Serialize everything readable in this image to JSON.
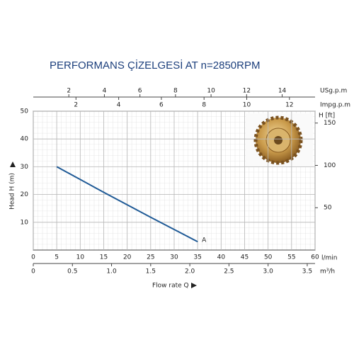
{
  "chart_data": {
    "type": "line",
    "title": "PERFORMANS ÇİZELGESİ  AT n=2850RPM",
    "x_label": "Flow rate Q",
    "x_unit": "l/min",
    "y_label": "Head H (m)",
    "y2_label": "H [ft]",
    "xlim": [
      0,
      60
    ],
    "xticks": [
      0,
      5,
      10,
      15,
      20,
      25,
      30,
      35,
      40,
      45,
      50,
      55,
      60
    ],
    "ylim": [
      0,
      50
    ],
    "yticks": [
      10,
      20,
      30,
      40,
      50
    ],
    "y2lim": [
      0,
      164
    ],
    "y2ticks": [
      50,
      100,
      150
    ],
    "extra_x_axes": [
      {
        "unit": "m³/h",
        "position": "bottom",
        "lim": [
          0,
          3.6
        ],
        "ticks": [
          0,
          0.5,
          {
            "value": 1,
            "label": "1.0"
          },
          1.5,
          {
            "value": 2,
            "label": "2.0"
          },
          2.5,
          {
            "value": 3,
            "label": "3.0"
          },
          3.5
        ]
      },
      {
        "unit": "USg.p.m",
        "position": "top",
        "lim": [
          0,
          15.85
        ],
        "ticks": [
          2,
          4,
          6,
          8,
          10,
          12,
          14
        ]
      },
      {
        "unit": "Impg.p.m",
        "position": "top",
        "lim": [
          0,
          13.2
        ],
        "ticks": [
          2,
          4,
          6,
          8,
          10,
          12
        ]
      }
    ],
    "x": [
      5,
      10,
      15,
      20,
      25,
      30,
      35
    ],
    "series": [
      {
        "name": "A",
        "color": "#1f5a96",
        "values": [
          30,
          25.4,
          20.8,
          16.3,
          11.8,
          7.4,
          3
        ]
      }
    ],
    "grid": true
  }
}
